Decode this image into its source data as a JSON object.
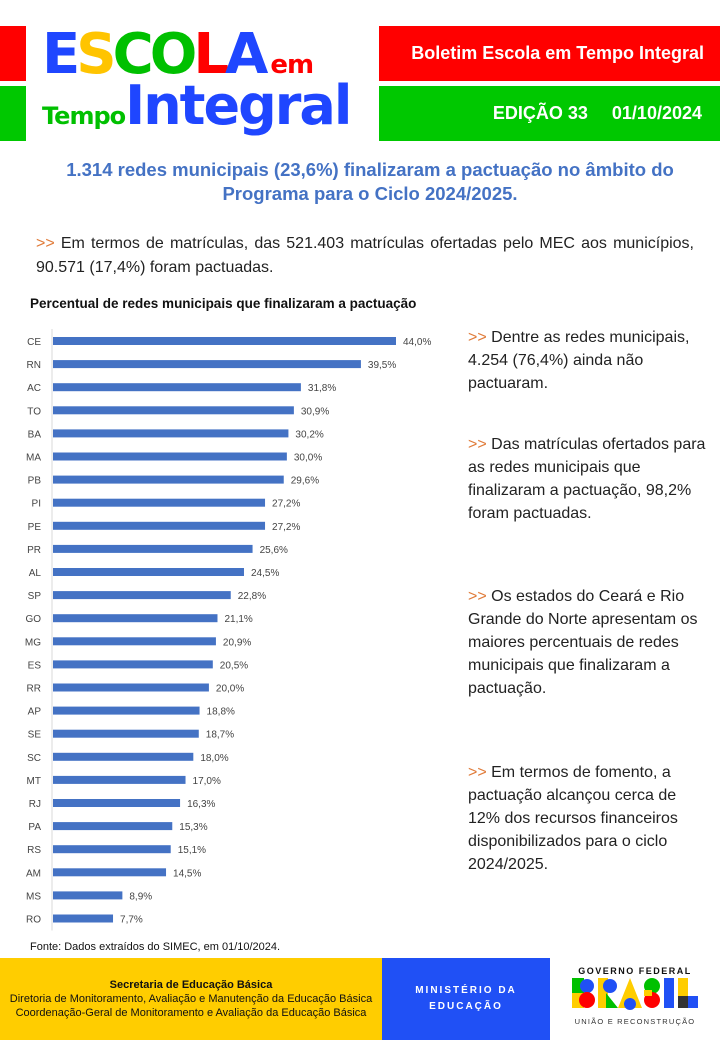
{
  "header": {
    "logo": {
      "letters": [
        {
          "char": "E",
          "color": "#1f46ff"
        },
        {
          "char": "S",
          "color": "#ffc400"
        },
        {
          "char": "C",
          "color": "#00c000"
        },
        {
          "char": "O",
          "color": "#00c000"
        },
        {
          "char": "L",
          "color": "#ff0000"
        },
        {
          "char": "A",
          "color": "#1f46ff"
        }
      ],
      "em": "em",
      "tempo": "Tempo",
      "integral": "Integral"
    },
    "bulletin_title": "Boletim Escola em Tempo Integral",
    "edition": "EDIÇÃO 33",
    "date": "01/10/2024"
  },
  "headline": "1.314 redes municipais (23,6%) finalizaram a pactuação no âmbito do Programa para o Ciclo 2024/2025.",
  "intro": {
    "marker": ">>",
    "text": " Em termos de matrículas, das 521.403 matrículas ofertadas pelo MEC aos municípios, 90.571 (17,4%) foram pactuadas."
  },
  "highlights": [
    {
      "marker": ">>",
      "text": " Dentre as redes municipais, 4.254 (76,4%) ainda não pactuaram."
    },
    {
      "marker": ">>",
      "text": " Das matrículas ofertados para as redes municipais que finalizaram a pactuação, 98,2% foram pactuadas."
    },
    {
      "marker": ">>",
      "text": " Os estados do Ceará e Rio Grande do Norte apresentam os maiores percentuais de redes municipais que finalizaram a pactuação."
    },
    {
      "marker": ">>",
      "text": " Em termos de fomento, a pactuação alcançou cerca de 12% dos recursos financeiros disponibilizados para o ciclo 2024/2025."
    }
  ],
  "chart_data": {
    "type": "bar",
    "orientation": "horizontal",
    "title": "Percentual de redes municipais que finalizaram a pactuação",
    "xlabel": "",
    "ylabel": "",
    "categories": [
      "CE",
      "RN",
      "AC",
      "TO",
      "BA",
      "MA",
      "PB",
      "PI",
      "PE",
      "PR",
      "AL",
      "SP",
      "GO",
      "MG",
      "ES",
      "RR",
      "AP",
      "SE",
      "SC",
      "MT",
      "RJ",
      "PA",
      "RS",
      "AM",
      "MS",
      "RO"
    ],
    "values": [
      44.0,
      39.5,
      31.8,
      30.9,
      30.2,
      30.0,
      29.6,
      27.2,
      27.2,
      25.6,
      24.5,
      22.8,
      21.1,
      20.9,
      20.5,
      20.0,
      18.8,
      18.7,
      18.0,
      17.0,
      16.3,
      15.3,
      15.1,
      14.5,
      8.9,
      7.7
    ],
    "labels": [
      "44,0%",
      "39,5%",
      "31,8%",
      "30,9%",
      "30,2%",
      "30,0%",
      "29,6%",
      "27,2%",
      "27,2%",
      "25,6%",
      "24,5%",
      "22,8%",
      "21,1%",
      "20,9%",
      "20,5%",
      "20,0%",
      "18,8%",
      "18,7%",
      "18,0%",
      "17,0%",
      "16,3%",
      "15,3%",
      "15,1%",
      "14,5%",
      "8,9%",
      "7,7%"
    ],
    "xlim": [
      0,
      44
    ],
    "grid": false,
    "legend": "none",
    "bar_color": "#4472c4"
  },
  "source": "Fonte: Dados extraídos do SIMEC, em 01/10/2024.",
  "footer": {
    "secretaria": "Secretaria de Educação Básica",
    "diretoria": "Diretoria de Monitoramento, Avaliação e Manutenção da Educação Básica",
    "coordenacao": "Coordenação-Geral de Monitoramento e Avaliação da Educação Básica",
    "ministerio_line1": "MINISTÉRIO DA",
    "ministerio_line2": "EDUCAÇÃO",
    "gov_top": "GOVERNO FEDERAL",
    "gov_word": "BRASIL",
    "gov_bottom": "UNIÃO E RECONSTRUÇÃO"
  }
}
